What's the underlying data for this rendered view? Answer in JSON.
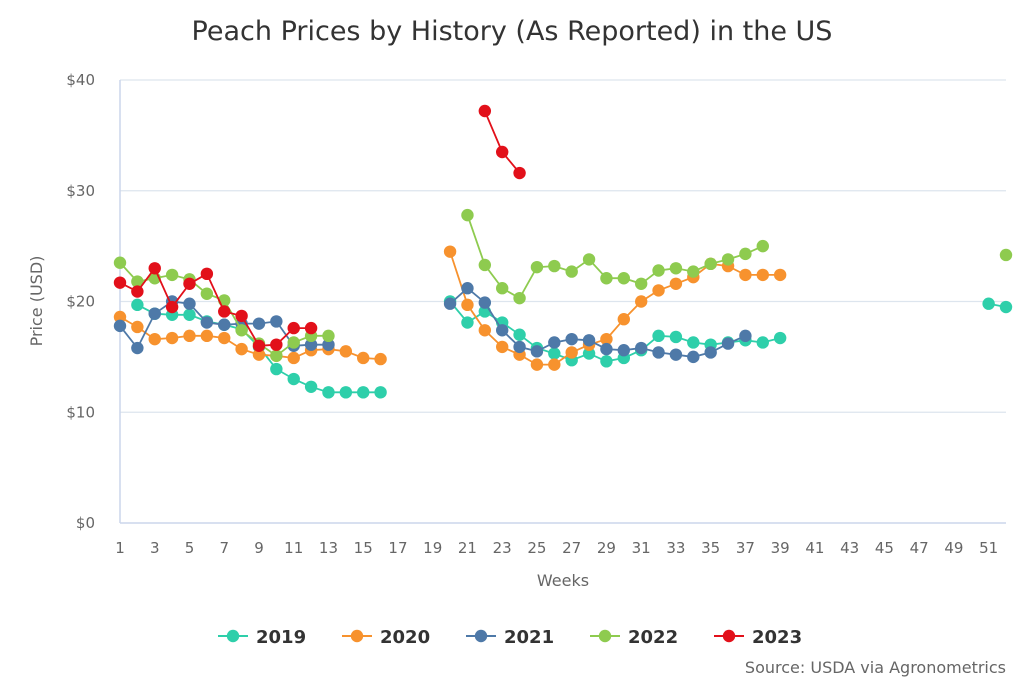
{
  "chart_data": {
    "type": "line",
    "title": "Peach Prices by History (As Reported) in the US",
    "xlabel": "Weeks",
    "ylabel": "Price (USD)",
    "xlim": [
      1,
      52
    ],
    "ylim": [
      0,
      40
    ],
    "x_ticks": [
      1,
      3,
      5,
      7,
      9,
      11,
      13,
      15,
      17,
      19,
      21,
      23,
      25,
      27,
      29,
      31,
      33,
      35,
      37,
      39,
      41,
      43,
      45,
      47,
      49,
      51
    ],
    "x_tick_labels": [
      "1",
      "3",
      "5",
      "7",
      "9",
      "11",
      "13",
      "15",
      "17",
      "19",
      "21",
      "23",
      "25",
      "27",
      "29",
      "31",
      "33",
      "35",
      "37",
      "39",
      "41",
      "43",
      "45",
      "47",
      "49",
      "51"
    ],
    "y_ticks": [
      0,
      10,
      20,
      30,
      40
    ],
    "y_tick_labels": [
      "$0",
      "$10",
      "$20",
      "$30",
      "$40"
    ],
    "grid": "horizontal",
    "legend_position": "bottom",
    "source": "Source: USDA via Agronometrics",
    "series": [
      {
        "name": "2019",
        "color": "#2ecfaa",
        "points": [
          [
            2,
            19.7
          ],
          [
            3,
            18.9
          ],
          [
            4,
            18.8
          ],
          [
            5,
            18.8
          ],
          [
            6,
            18.2
          ],
          [
            7,
            17.9
          ],
          [
            8,
            17.5
          ],
          [
            9,
            15.9
          ],
          [
            10,
            13.9
          ],
          [
            11,
            13.0
          ],
          [
            12,
            12.3
          ],
          [
            13,
            11.8
          ],
          [
            14,
            11.8
          ],
          [
            15,
            11.8
          ],
          [
            16,
            11.8
          ],
          null,
          [
            20,
            20.0
          ],
          [
            21,
            18.1
          ],
          [
            22,
            19.1
          ],
          [
            23,
            18.1
          ],
          [
            24,
            17.0
          ],
          [
            25,
            15.8
          ],
          [
            26,
            15.3
          ],
          [
            27,
            14.7
          ],
          [
            28,
            15.3
          ],
          [
            29,
            14.6
          ],
          [
            30,
            14.9
          ],
          [
            31,
            15.6
          ],
          [
            32,
            16.9
          ],
          [
            33,
            16.8
          ],
          [
            34,
            16.3
          ],
          [
            35,
            16.1
          ],
          [
            36,
            16.3
          ],
          [
            37,
            16.5
          ],
          [
            38,
            16.3
          ],
          [
            39,
            16.7
          ],
          null,
          [
            51,
            19.8
          ],
          [
            52,
            19.5
          ]
        ]
      },
      {
        "name": "2020",
        "color": "#f7922e",
        "points": [
          [
            1,
            18.6
          ],
          [
            2,
            17.7
          ],
          [
            3,
            16.6
          ],
          [
            4,
            16.7
          ],
          [
            5,
            16.9
          ],
          [
            6,
            16.9
          ],
          [
            7,
            16.7
          ],
          [
            8,
            15.7
          ],
          [
            9,
            15.2
          ],
          [
            10,
            15.1
          ],
          [
            11,
            14.9
          ],
          [
            12,
            15.6
          ],
          [
            13,
            15.7
          ],
          [
            14,
            15.5
          ],
          [
            15,
            14.9
          ],
          [
            16,
            14.8
          ],
          null,
          [
            20,
            24.5
          ],
          [
            21,
            19.7
          ],
          [
            22,
            17.4
          ],
          [
            23,
            15.9
          ],
          [
            24,
            15.2
          ],
          [
            25,
            14.3
          ],
          [
            26,
            14.3
          ],
          [
            27,
            15.4
          ],
          [
            28,
            16.1
          ],
          [
            29,
            16.6
          ],
          [
            30,
            18.4
          ],
          [
            31,
            20.0
          ],
          [
            32,
            21.0
          ],
          [
            33,
            21.6
          ],
          [
            34,
            22.2
          ],
          [
            35,
            23.4
          ],
          [
            36,
            23.2
          ],
          [
            37,
            22.4
          ],
          [
            38,
            22.4
          ],
          [
            39,
            22.4
          ]
        ]
      },
      {
        "name": "2021",
        "color": "#4e79a8",
        "points": [
          [
            1,
            17.8
          ],
          [
            2,
            15.8
          ],
          [
            3,
            18.9
          ],
          [
            4,
            20.0
          ],
          [
            5,
            19.8
          ],
          [
            6,
            18.1
          ],
          [
            7,
            17.9
          ],
          [
            8,
            18.0
          ],
          [
            9,
            18.0
          ],
          [
            10,
            18.2
          ],
          [
            11,
            16.0
          ],
          [
            12,
            16.1
          ],
          [
            13,
            16.1
          ],
          null,
          [
            20,
            19.8
          ],
          [
            21,
            21.2
          ],
          [
            22,
            19.9
          ],
          [
            23,
            17.4
          ],
          [
            24,
            15.9
          ],
          [
            25,
            15.5
          ],
          [
            26,
            16.3
          ],
          [
            27,
            16.6
          ],
          [
            28,
            16.5
          ],
          [
            29,
            15.7
          ],
          [
            30,
            15.6
          ],
          [
            31,
            15.8
          ],
          [
            32,
            15.4
          ],
          [
            33,
            15.2
          ],
          [
            34,
            15.0
          ],
          [
            35,
            15.4
          ],
          [
            36,
            16.2
          ],
          [
            37,
            16.9
          ]
        ]
      },
      {
        "name": "2022",
        "color": "#8ecb4f",
        "points": [
          [
            1,
            23.5
          ],
          [
            2,
            21.8
          ],
          [
            3,
            22.1
          ],
          [
            4,
            22.4
          ],
          [
            5,
            22.0
          ],
          [
            6,
            20.7
          ],
          [
            7,
            20.1
          ],
          [
            8,
            17.4
          ],
          [
            9,
            16.2
          ],
          [
            10,
            15.1
          ],
          [
            11,
            16.3
          ],
          [
            12,
            16.9
          ],
          [
            13,
            16.9
          ],
          null,
          [
            21,
            27.8
          ],
          [
            22,
            23.3
          ],
          [
            23,
            21.2
          ],
          [
            24,
            20.3
          ],
          [
            25,
            23.1
          ],
          [
            26,
            23.2
          ],
          [
            27,
            22.7
          ],
          [
            28,
            23.8
          ],
          [
            29,
            22.1
          ],
          [
            30,
            22.1
          ],
          [
            31,
            21.6
          ],
          [
            32,
            22.8
          ],
          [
            33,
            23.0
          ],
          [
            34,
            22.7
          ],
          [
            35,
            23.4
          ],
          [
            36,
            23.8
          ],
          [
            37,
            24.3
          ],
          [
            38,
            25.0
          ],
          null,
          [
            52,
            24.2
          ]
        ]
      },
      {
        "name": "2023",
        "color": "#e2101a",
        "points": [
          [
            1,
            21.7
          ],
          [
            2,
            20.9
          ],
          [
            3,
            23.0
          ],
          [
            4,
            19.5
          ],
          [
            5,
            21.6
          ],
          [
            6,
            22.5
          ],
          [
            7,
            19.1
          ],
          [
            8,
            18.7
          ],
          [
            9,
            16.0
          ],
          [
            10,
            16.1
          ],
          [
            11,
            17.6
          ],
          [
            12,
            17.6
          ],
          null,
          [
            22,
            37.2
          ],
          [
            23,
            33.5
          ],
          [
            24,
            31.6
          ]
        ]
      }
    ]
  }
}
